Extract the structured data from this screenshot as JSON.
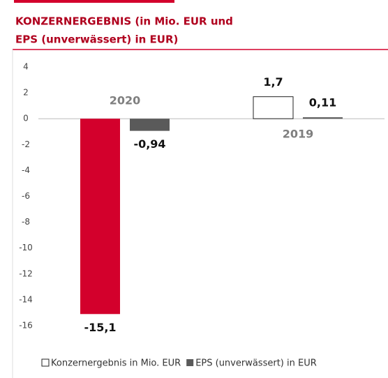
{
  "chart_data": {
    "type": "bar",
    "title": [
      "KONZERNERGEBNIS (in Mio. EUR und",
      "EPS (unverwässert) in EUR)"
    ],
    "categories": [
      "2020",
      "2019"
    ],
    "series": [
      {
        "name": "Konzernergebnis in Mio. EUR",
        "color": "#ffffff",
        "colors": [
          "#d3002c",
          "#ffffff"
        ],
        "values": [
          -15.1,
          1.7
        ],
        "value_labels": [
          "-15,1",
          "1,7"
        ]
      },
      {
        "name": "EPS (unverwässert) in EUR",
        "color": "#5a5a5a",
        "values": [
          -0.94,
          0.11
        ],
        "value_labels": [
          "-0,94",
          "0,11"
        ]
      }
    ],
    "ylim": [
      -16,
      4
    ],
    "yticks": [
      4,
      2,
      0,
      -2,
      -4,
      -6,
      -8,
      -10,
      -12,
      -14,
      -16
    ],
    "grid": false
  }
}
